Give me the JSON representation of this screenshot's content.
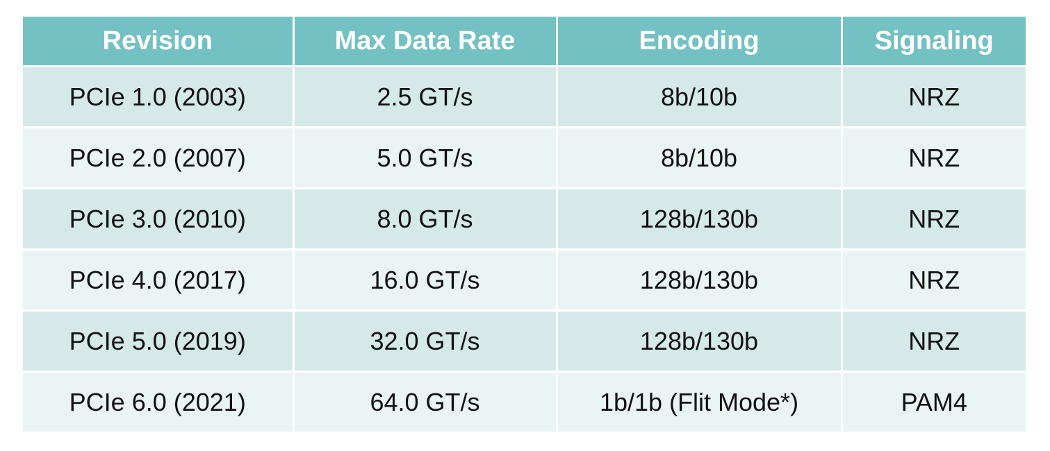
{
  "table": {
    "headers": [
      "Revision",
      "Max Data Rate",
      "Encoding",
      "Signaling"
    ],
    "rows": [
      [
        "PCIe 1.0 (2003)",
        "2.5 GT/s",
        "8b/10b",
        "NRZ"
      ],
      [
        "PCIe 2.0 (2007)",
        "5.0 GT/s",
        "8b/10b",
        "NRZ"
      ],
      [
        "PCIe 3.0 (2010)",
        "8.0 GT/s",
        "128b/130b",
        "NRZ"
      ],
      [
        "PCIe 4.0 (2017)",
        "16.0 GT/s",
        "128b/130b",
        "NRZ"
      ],
      [
        "PCIe 5.0 (2019)",
        "32.0 GT/s",
        "128b/130b",
        "NRZ"
      ],
      [
        "PCIe 6.0 (2021)",
        "64.0 GT/s",
        "1b/1b (Flit Mode*)",
        "PAM4"
      ]
    ]
  },
  "colors": {
    "header_bg": "#74c1c3",
    "row_odd_bg": "#d5e9e9",
    "row_even_bg": "#eaf4f4"
  }
}
